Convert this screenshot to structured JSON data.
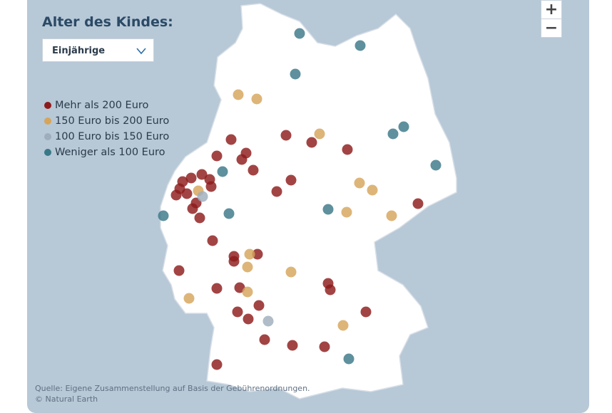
{
  "title": "Alter des Kindes:",
  "dropdown": "Einjährige",
  "legend": [
    {
      "name": "Mehr als 200 Euro",
      "color": "#8e1b1b"
    },
    {
      "name": "150 Euro bis 200 Euro",
      "color": "#d6a55a"
    },
    {
      "name": "100 Euro bis 150 Euro",
      "color": "#9fadbc"
    },
    {
      "name": "Weniger als 100 Euro",
      "color": "#3a7887"
    }
  ],
  "source": [
    "Quelle: Eigene Zusammenstellung auf Basis der Gebührenordnungen.",
    "© Natural Earth"
  ],
  "zoom": [
    "+",
    "−"
  ]
}
